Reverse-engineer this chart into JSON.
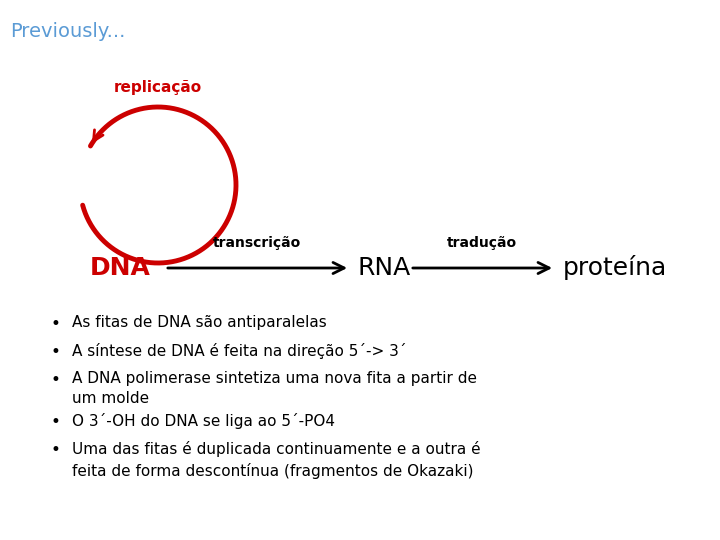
{
  "title": "Previously...",
  "title_color": "#5B9BD5",
  "title_fontsize": 14,
  "replicacao_label": "replicação",
  "replicacao_color": "#CC0000",
  "dna_label": "DNA",
  "dna_color": "#CC0000",
  "rna_label": "RNA",
  "proteina_label": "proteína",
  "transcricao_label": "transcrição",
  "traducao_label": "tradução",
  "arrow_color": "#000000",
  "text_color": "#000000",
  "bullet_points": [
    "As fitas de DNA são antiparalelas",
    "A síntese de DNA é feita na direção 5´-> 3´",
    "A DNA polimerase sintetiza uma nova fita a partir de\num molde",
    "O 3´-OH do DNA se liga ao 5´-PO4",
    "Uma das fitas é duplicada continuamente e a outra é\nfeita de forma descontínua (fragmentos de Okazaki)"
  ],
  "background_color": "#ffffff"
}
